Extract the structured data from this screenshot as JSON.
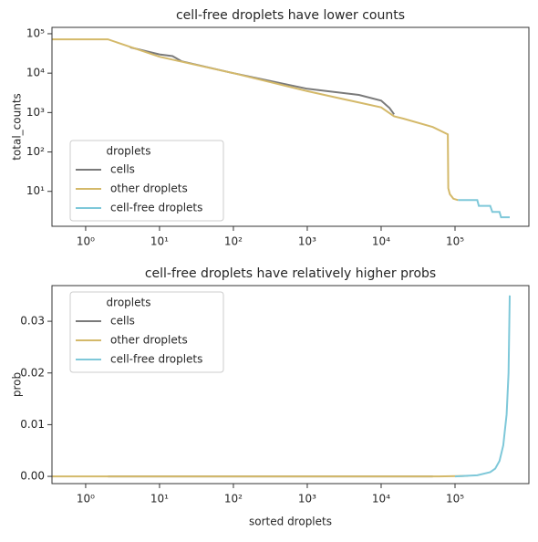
{
  "chart_data": [
    {
      "type": "line",
      "title": "cell-free droplets have lower counts",
      "ylabel": "total_counts",
      "xscale": "log",
      "yscale": "log",
      "legend_title": "droplets",
      "legend": "lower left",
      "xlim": [
        0.35,
        1000000
      ],
      "ylim": [
        1.3,
        145000
      ],
      "xticks": [
        {
          "value": 1,
          "label": "10⁰"
        },
        {
          "value": 10,
          "label": "10¹"
        },
        {
          "value": 100,
          "label": "10²"
        },
        {
          "value": 1000,
          "label": "10³"
        },
        {
          "value": 10000,
          "label": "10⁴"
        },
        {
          "value": 100000,
          "label": "10⁵"
        }
      ],
      "yticks": [
        {
          "value": 10,
          "label": "10¹"
        },
        {
          "value": 100,
          "label": "10²"
        },
        {
          "value": 1000,
          "label": "10³"
        },
        {
          "value": 10000,
          "label": "10⁴"
        },
        {
          "value": 100000,
          "label": "10⁵"
        }
      ],
      "series": [
        {
          "name": "cells",
          "color": "#7a7a7a",
          "x": [
            4,
            10,
            15,
            20,
            100,
            1000,
            5000,
            10000,
            13000,
            15000
          ],
          "values": [
            45000,
            30000,
            27000,
            20000,
            10000,
            4000,
            2800,
            2000,
            1300,
            900
          ]
        },
        {
          "name": "other droplets",
          "color": "#d4b96a",
          "x": [
            0.35,
            2,
            10,
            100,
            1000,
            10000,
            15000,
            20000,
            50000,
            80000,
            81000,
            85000,
            95000,
            110000
          ],
          "values": [
            72000,
            72000,
            26000,
            10000,
            3500,
            1350,
            800,
            700,
            430,
            280,
            12,
            8.5,
            6.5,
            6
          ]
        },
        {
          "name": "cell-free droplets",
          "color": "#7ec8d9",
          "x": [
            110000,
            200000,
            210000,
            300000,
            320000,
            400000,
            420000,
            550000
          ],
          "values": [
            6,
            6,
            4.3,
            4.3,
            3,
            3,
            2.2,
            2.2
          ]
        }
      ]
    },
    {
      "type": "line",
      "title": "cell-free droplets have relatively higher probs",
      "ylabel": "prob",
      "xlabel": "sorted droplets",
      "xscale": "log",
      "yscale": "linear",
      "legend_title": "droplets",
      "legend": "upper left",
      "xlim": [
        0.35,
        1000000
      ],
      "ylim": [
        -0.0014,
        0.0369
      ],
      "xticks": [
        {
          "value": 1,
          "label": "10⁰"
        },
        {
          "value": 10,
          "label": "10¹"
        },
        {
          "value": 100,
          "label": "10²"
        },
        {
          "value": 1000,
          "label": "10³"
        },
        {
          "value": 10000,
          "label": "10⁴"
        },
        {
          "value": 100000,
          "label": "10⁵"
        }
      ],
      "yticks": [
        {
          "value": 0,
          "label": "0.00"
        },
        {
          "value": 0.01,
          "label": "0.01"
        },
        {
          "value": 0.02,
          "label": "0.02"
        },
        {
          "value": 0.03,
          "label": "0.03"
        }
      ],
      "series": [
        {
          "name": "cells",
          "color": "#7a7a7a",
          "x": [
            2,
            50000
          ],
          "values": [
            0,
            0
          ]
        },
        {
          "name": "other droplets",
          "color": "#d4b96a",
          "x": [
            0.35,
            60000,
            150000
          ],
          "values": [
            0,
            0,
            0.0001
          ]
        },
        {
          "name": "cell-free droplets",
          "color": "#7ec8d9",
          "x": [
            100000,
            200000,
            300000,
            350000,
            400000,
            450000,
            500000,
            530000,
            550000
          ],
          "values": [
            0,
            0.0002,
            0.0008,
            0.0015,
            0.003,
            0.006,
            0.012,
            0.02,
            0.035
          ]
        }
      ]
    }
  ]
}
